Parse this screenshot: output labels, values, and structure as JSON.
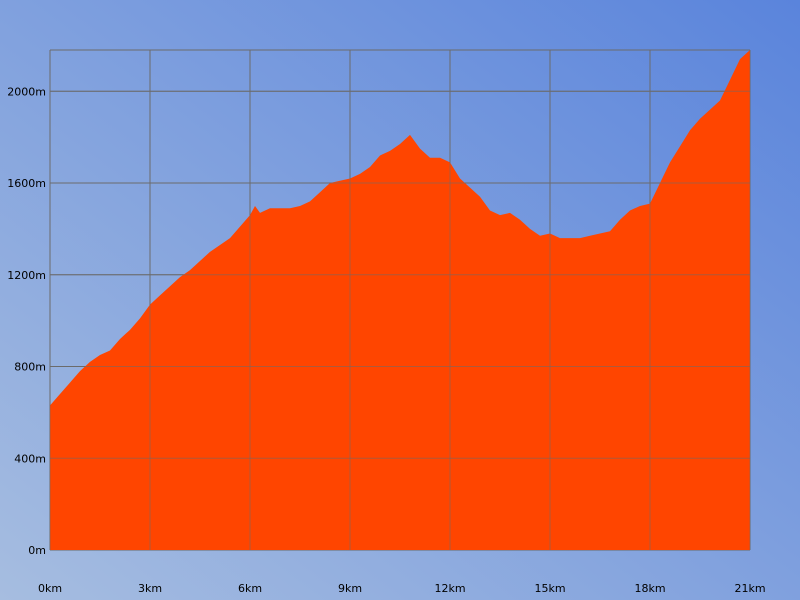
{
  "colors": {
    "background_light": "#a6bde0",
    "background_dark": "#5a84dc",
    "area_fill": "#ff4500",
    "grid": "#6b6b6b",
    "text": "#000000"
  },
  "chart_data": {
    "type": "area",
    "title": "",
    "xlabel": "",
    "ylabel": "",
    "grid": true,
    "xlim": [
      0,
      21
    ],
    "ylim": [
      0,
      2180
    ],
    "x_ticks": [
      {
        "value": 0,
        "label": "0km"
      },
      {
        "value": 3,
        "label": "3km"
      },
      {
        "value": 6,
        "label": "6km"
      },
      {
        "value": 9,
        "label": "9km"
      },
      {
        "value": 12,
        "label": "12km"
      },
      {
        "value": 15,
        "label": "15km"
      },
      {
        "value": 18,
        "label": "18km"
      },
      {
        "value": 21,
        "label": "21km"
      }
    ],
    "y_ticks": [
      {
        "value": 0,
        "label": "0m"
      },
      {
        "value": 400,
        "label": "400m"
      },
      {
        "value": 800,
        "label": "800m"
      },
      {
        "value": 1200,
        "label": "1200m"
      },
      {
        "value": 1600,
        "label": "1600m"
      },
      {
        "value": 2000,
        "label": "2000m"
      }
    ],
    "series": [
      {
        "x": [
          0,
          0.3,
          0.6,
          0.9,
          1.2,
          1.5,
          1.8,
          2.1,
          2.4,
          2.7,
          3.0,
          3.3,
          3.6,
          3.9,
          4.2,
          4.5,
          4.8,
          5.1,
          5.4,
          5.7,
          6.0,
          6.15,
          6.3,
          6.6,
          6.9,
          7.2,
          7.5,
          7.8,
          8.1,
          8.4,
          8.7,
          9.0,
          9.3,
          9.6,
          9.9,
          10.2,
          10.5,
          10.8,
          11.1,
          11.4,
          11.7,
          12.0,
          12.3,
          12.6,
          12.9,
          13.2,
          13.5,
          13.8,
          14.1,
          14.4,
          14.7,
          15.0,
          15.3,
          15.6,
          15.9,
          16.2,
          16.5,
          16.8,
          17.1,
          17.4,
          17.7,
          18.0,
          18.3,
          18.6,
          18.9,
          19.2,
          19.5,
          19.8,
          20.1,
          20.4,
          20.7,
          21.0
        ],
        "y": [
          630,
          680,
          730,
          780,
          820,
          850,
          870,
          920,
          960,
          1010,
          1070,
          1110,
          1150,
          1190,
          1220,
          1260,
          1300,
          1330,
          1360,
          1410,
          1460,
          1500,
          1470,
          1490,
          1490,
          1490,
          1500,
          1520,
          1560,
          1600,
          1610,
          1620,
          1640,
          1670,
          1720,
          1740,
          1770,
          1810,
          1750,
          1710,
          1710,
          1690,
          1620,
          1580,
          1540,
          1480,
          1460,
          1470,
          1440,
          1400,
          1370,
          1380,
          1360,
          1360,
          1360,
          1370,
          1380,
          1390,
          1440,
          1480,
          1500,
          1510,
          1600,
          1690,
          1760,
          1830,
          1880,
          1920,
          1960,
          2050,
          2140,
          2180
        ]
      }
    ]
  }
}
